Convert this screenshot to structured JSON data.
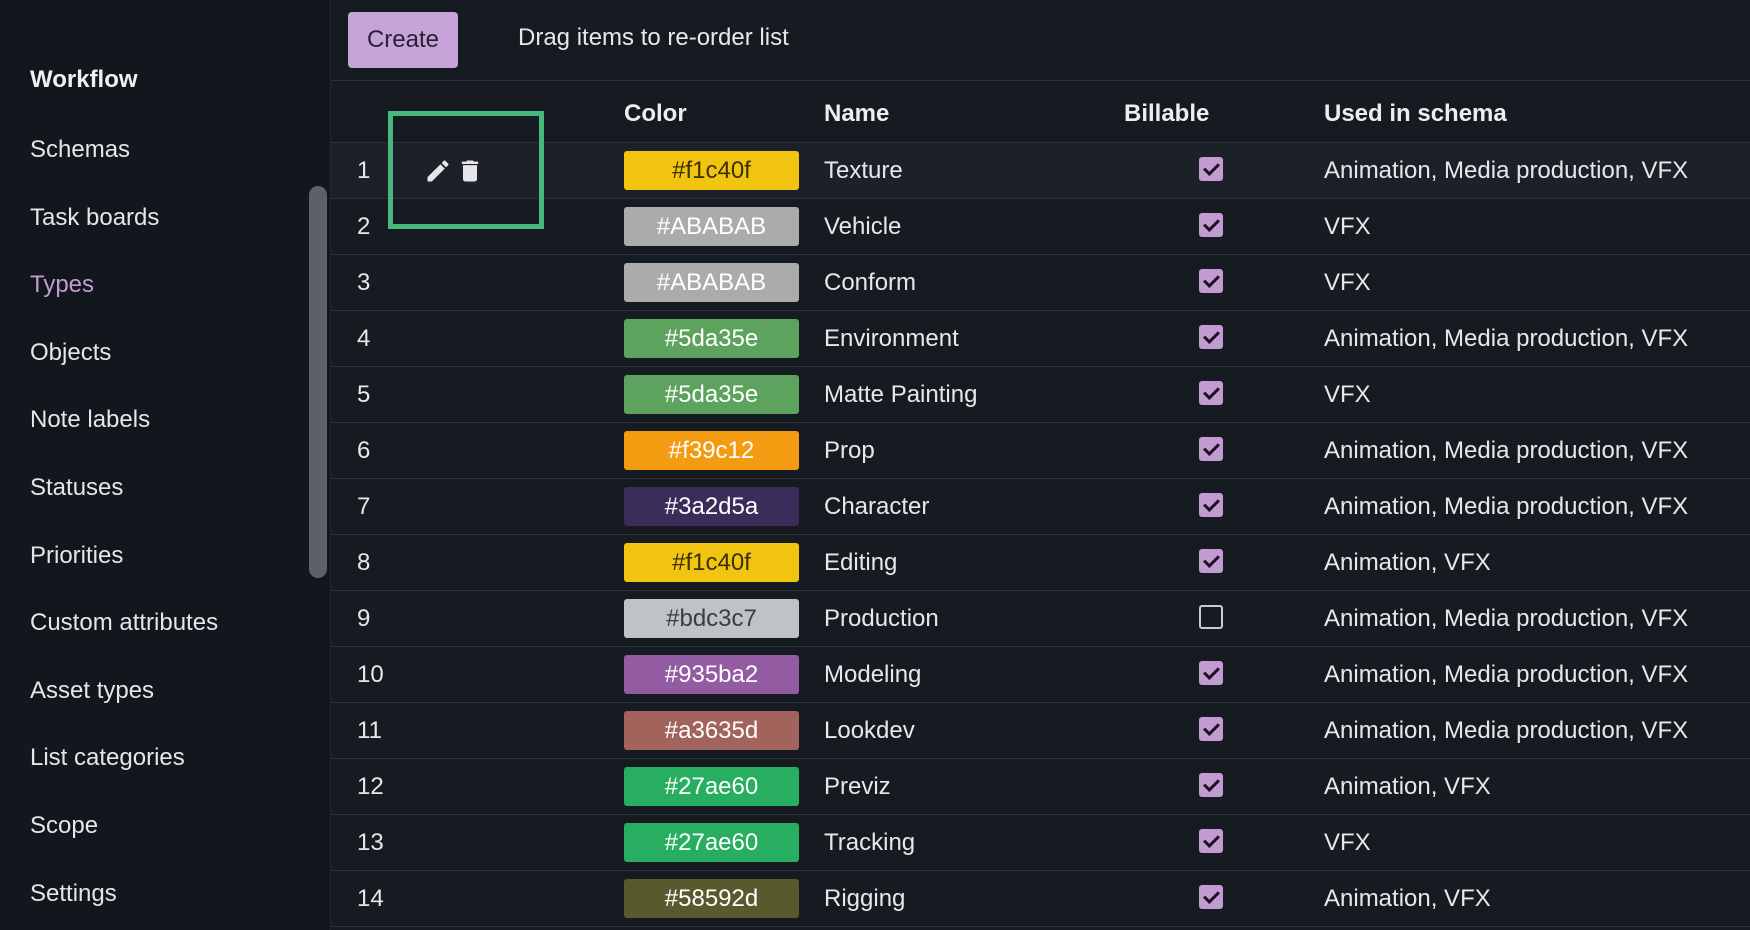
{
  "sidebar": {
    "heading": "Workflow",
    "items": [
      {
        "label": "Schemas"
      },
      {
        "label": "Task boards"
      },
      {
        "label": "Types",
        "active": true
      },
      {
        "label": "Objects"
      },
      {
        "label": "Note labels"
      },
      {
        "label": "Statuses"
      },
      {
        "label": "Priorities"
      },
      {
        "label": "Custom attributes"
      },
      {
        "label": "Asset types"
      },
      {
        "label": "List categories"
      },
      {
        "label": "Scope"
      },
      {
        "label": "Settings"
      }
    ]
  },
  "toolbar": {
    "create_label": "Create",
    "hint": "Drag items to re-order list"
  },
  "table": {
    "headers": {
      "color": "Color",
      "name": "Name",
      "billable": "Billable",
      "schema": "Used in schema"
    },
    "rows": [
      {
        "index": "1",
        "color": "#f1c40f",
        "bg": "#f1c40f",
        "fg": "#3a2f05",
        "name": "Texture",
        "billable": true,
        "schema": "Animation, Media production, VFX"
      },
      {
        "index": "2",
        "color": "#ABABAB",
        "bg": "#ababab",
        "fg": "#ffffff",
        "name": "Vehicle",
        "billable": true,
        "schema": "VFX"
      },
      {
        "index": "3",
        "color": "#ABABAB",
        "bg": "#ababab",
        "fg": "#ffffff",
        "name": "Conform",
        "billable": true,
        "schema": "VFX"
      },
      {
        "index": "4",
        "color": "#5da35e",
        "bg": "#5da35e",
        "fg": "#ffffff",
        "name": "Environment",
        "billable": true,
        "schema": "Animation, Media production, VFX"
      },
      {
        "index": "5",
        "color": "#5da35e",
        "bg": "#5da35e",
        "fg": "#ffffff",
        "name": "Matte Painting",
        "billable": true,
        "schema": "VFX"
      },
      {
        "index": "6",
        "color": "#f39c12",
        "bg": "#f39c12",
        "fg": "#ffffff",
        "name": "Prop",
        "billable": true,
        "schema": "Animation, Media production, VFX"
      },
      {
        "index": "7",
        "color": "#3a2d5a",
        "bg": "#3a2d5a",
        "fg": "#ffffff",
        "name": "Character",
        "billable": true,
        "schema": "Animation, Media production, VFX"
      },
      {
        "index": "8",
        "color": "#f1c40f",
        "bg": "#f1c40f",
        "fg": "#3a2f05",
        "name": "Editing",
        "billable": true,
        "schema": "Animation, VFX"
      },
      {
        "index": "9",
        "color": "#bdc3c7",
        "bg": "#bdc3c7",
        "fg": "#3a3d40",
        "name": "Production",
        "billable": false,
        "schema": "Animation, Media production, VFX"
      },
      {
        "index": "10",
        "color": "#935ba2",
        "bg": "#935ba2",
        "fg": "#ffffff",
        "name": "Modeling",
        "billable": true,
        "schema": "Animation, Media production, VFX"
      },
      {
        "index": "11",
        "color": "#a3635d",
        "bg": "#a3635d",
        "fg": "#ffffff",
        "name": "Lookdev",
        "billable": true,
        "schema": "Animation, Media production, VFX"
      },
      {
        "index": "12",
        "color": "#27ae60",
        "bg": "#27ae60",
        "fg": "#ffffff",
        "name": "Previz",
        "billable": true,
        "schema": "Animation, VFX"
      },
      {
        "index": "13",
        "color": "#27ae60",
        "bg": "#27ae60",
        "fg": "#ffffff",
        "name": "Tracking",
        "billable": true,
        "schema": "VFX"
      },
      {
        "index": "14",
        "color": "#58592d",
        "bg": "#58592d",
        "fg": "#ffffff",
        "name": "Rigging",
        "billable": true,
        "schema": "Animation, VFX"
      }
    ]
  },
  "colors": {
    "accent": "#c39bd3",
    "highlight": "#45b97c"
  },
  "icons": {
    "edit": "edit-icon",
    "delete": "delete-icon"
  }
}
